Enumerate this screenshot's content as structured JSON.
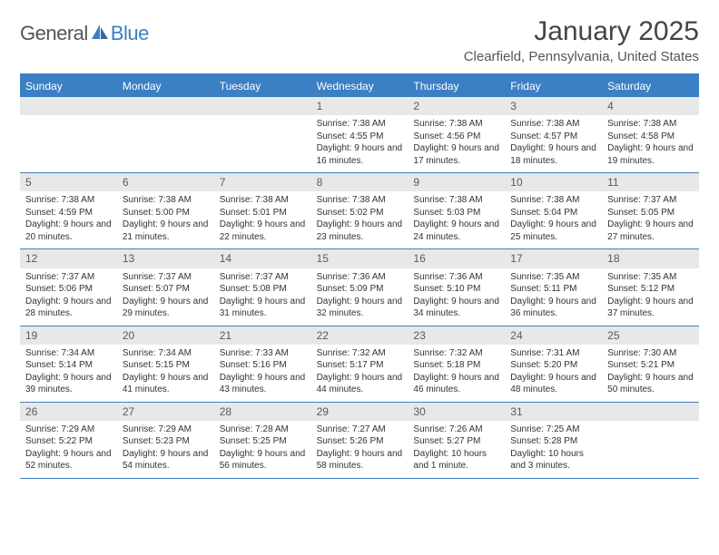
{
  "logo": {
    "text1": "General",
    "text2": "Blue"
  },
  "title": "January 2025",
  "subtitle": "Clearfield, Pennsylvania, United States",
  "colors": {
    "accent": "#3b7fc4",
    "header_bg": "#3b7fc4",
    "daynum_bg": "#e8e8e8",
    "text": "#333333",
    "title_text": "#444444"
  },
  "weekdays": [
    "Sunday",
    "Monday",
    "Tuesday",
    "Wednesday",
    "Thursday",
    "Friday",
    "Saturday"
  ],
  "weeks": [
    [
      null,
      null,
      null,
      {
        "n": "1",
        "sunrise": "7:38 AM",
        "sunset": "4:55 PM",
        "daylight": "9 hours and 16 minutes."
      },
      {
        "n": "2",
        "sunrise": "7:38 AM",
        "sunset": "4:56 PM",
        "daylight": "9 hours and 17 minutes."
      },
      {
        "n": "3",
        "sunrise": "7:38 AM",
        "sunset": "4:57 PM",
        "daylight": "9 hours and 18 minutes."
      },
      {
        "n": "4",
        "sunrise": "7:38 AM",
        "sunset": "4:58 PM",
        "daylight": "9 hours and 19 minutes."
      }
    ],
    [
      {
        "n": "5",
        "sunrise": "7:38 AM",
        "sunset": "4:59 PM",
        "daylight": "9 hours and 20 minutes."
      },
      {
        "n": "6",
        "sunrise": "7:38 AM",
        "sunset": "5:00 PM",
        "daylight": "9 hours and 21 minutes."
      },
      {
        "n": "7",
        "sunrise": "7:38 AM",
        "sunset": "5:01 PM",
        "daylight": "9 hours and 22 minutes."
      },
      {
        "n": "8",
        "sunrise": "7:38 AM",
        "sunset": "5:02 PM",
        "daylight": "9 hours and 23 minutes."
      },
      {
        "n": "9",
        "sunrise": "7:38 AM",
        "sunset": "5:03 PM",
        "daylight": "9 hours and 24 minutes."
      },
      {
        "n": "10",
        "sunrise": "7:38 AM",
        "sunset": "5:04 PM",
        "daylight": "9 hours and 25 minutes."
      },
      {
        "n": "11",
        "sunrise": "7:37 AM",
        "sunset": "5:05 PM",
        "daylight": "9 hours and 27 minutes."
      }
    ],
    [
      {
        "n": "12",
        "sunrise": "7:37 AM",
        "sunset": "5:06 PM",
        "daylight": "9 hours and 28 minutes."
      },
      {
        "n": "13",
        "sunrise": "7:37 AM",
        "sunset": "5:07 PM",
        "daylight": "9 hours and 29 minutes."
      },
      {
        "n": "14",
        "sunrise": "7:37 AM",
        "sunset": "5:08 PM",
        "daylight": "9 hours and 31 minutes."
      },
      {
        "n": "15",
        "sunrise": "7:36 AM",
        "sunset": "5:09 PM",
        "daylight": "9 hours and 32 minutes."
      },
      {
        "n": "16",
        "sunrise": "7:36 AM",
        "sunset": "5:10 PM",
        "daylight": "9 hours and 34 minutes."
      },
      {
        "n": "17",
        "sunrise": "7:35 AM",
        "sunset": "5:11 PM",
        "daylight": "9 hours and 36 minutes."
      },
      {
        "n": "18",
        "sunrise": "7:35 AM",
        "sunset": "5:12 PM",
        "daylight": "9 hours and 37 minutes."
      }
    ],
    [
      {
        "n": "19",
        "sunrise": "7:34 AM",
        "sunset": "5:14 PM",
        "daylight": "9 hours and 39 minutes."
      },
      {
        "n": "20",
        "sunrise": "7:34 AM",
        "sunset": "5:15 PM",
        "daylight": "9 hours and 41 minutes."
      },
      {
        "n": "21",
        "sunrise": "7:33 AM",
        "sunset": "5:16 PM",
        "daylight": "9 hours and 43 minutes."
      },
      {
        "n": "22",
        "sunrise": "7:32 AM",
        "sunset": "5:17 PM",
        "daylight": "9 hours and 44 minutes."
      },
      {
        "n": "23",
        "sunrise": "7:32 AM",
        "sunset": "5:18 PM",
        "daylight": "9 hours and 46 minutes."
      },
      {
        "n": "24",
        "sunrise": "7:31 AM",
        "sunset": "5:20 PM",
        "daylight": "9 hours and 48 minutes."
      },
      {
        "n": "25",
        "sunrise": "7:30 AM",
        "sunset": "5:21 PM",
        "daylight": "9 hours and 50 minutes."
      }
    ],
    [
      {
        "n": "26",
        "sunrise": "7:29 AM",
        "sunset": "5:22 PM",
        "daylight": "9 hours and 52 minutes."
      },
      {
        "n": "27",
        "sunrise": "7:29 AM",
        "sunset": "5:23 PM",
        "daylight": "9 hours and 54 minutes."
      },
      {
        "n": "28",
        "sunrise": "7:28 AM",
        "sunset": "5:25 PM",
        "daylight": "9 hours and 56 minutes."
      },
      {
        "n": "29",
        "sunrise": "7:27 AM",
        "sunset": "5:26 PM",
        "daylight": "9 hours and 58 minutes."
      },
      {
        "n": "30",
        "sunrise": "7:26 AM",
        "sunset": "5:27 PM",
        "daylight": "10 hours and 1 minute."
      },
      {
        "n": "31",
        "sunrise": "7:25 AM",
        "sunset": "5:28 PM",
        "daylight": "10 hours and 3 minutes."
      },
      null
    ]
  ],
  "labels": {
    "sunrise": "Sunrise:",
    "sunset": "Sunset:",
    "daylight": "Daylight:"
  }
}
